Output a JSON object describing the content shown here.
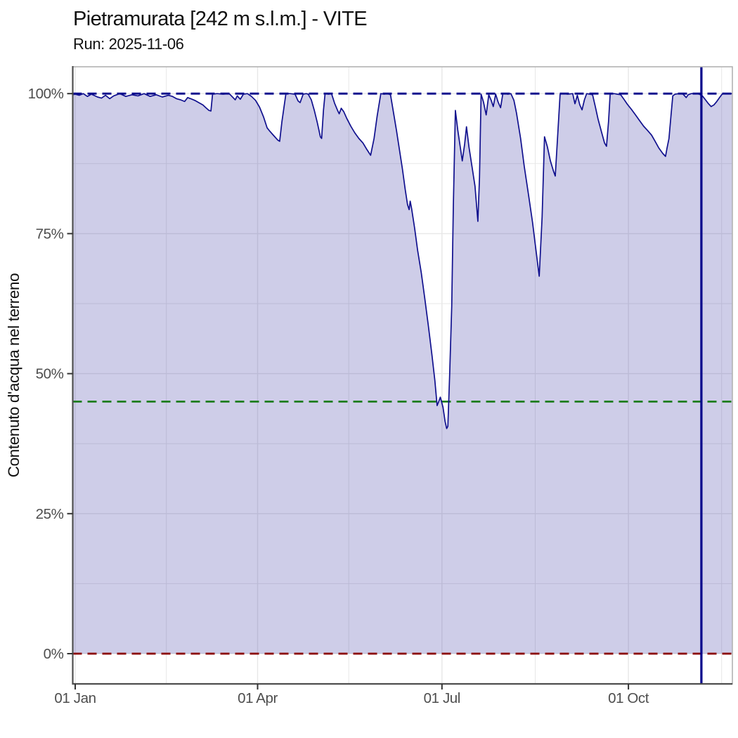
{
  "chart_data": {
    "type": "area",
    "title": "Pietramurata [242 m s.l.m.] - VITE",
    "subtitle": "Run: 2025-11-06",
    "run_date": "2025-11-06",
    "xlabel": "",
    "ylabel": "Contenuto d'acqua nel terreno",
    "x_axis": {
      "tick_labels": [
        "01 Jan",
        "01 Apr",
        "01 Jul",
        "01 Oct"
      ],
      "tick_days": [
        0,
        90,
        181,
        273
      ],
      "minor_days": [
        45,
        135,
        227,
        319
      ],
      "range_days": [
        -1.2,
        324.3
      ]
    },
    "y_axis": {
      "tick_labels": [
        "0%",
        "25%",
        "50%",
        "75%",
        "100%"
      ],
      "tick_values": [
        0,
        25,
        50,
        75,
        100
      ],
      "minor_values": [
        12.5,
        37.5,
        62.5,
        87.5
      ],
      "range_panel": [
        -5.4,
        104.8
      ]
    },
    "reference_lines": [
      {
        "name": "hline-100",
        "value": 100,
        "color": "#00008B"
      },
      {
        "name": "hline-threshold",
        "value": 45,
        "color": "#1e7d1e"
      },
      {
        "name": "hline-0",
        "value": 0,
        "color": "#8B0000"
      }
    ],
    "run_line": {
      "day": 309,
      "color": "#00008B"
    },
    "colors": {
      "series_line": "#10108e",
      "series_fill": "rgba(60,55,165,0.25)",
      "grid": "#e7e7e7",
      "panel_border": "#b3b3b3",
      "axis_line": "#4f4f4f",
      "tick": "#333333",
      "tick_text": "#4d4d4d",
      "title_text": "#111111"
    },
    "series": [
      {
        "name": "contenuto d'acqua (%)",
        "points": [
          [
            -1.2,
            99.8
          ],
          [
            0,
            99.9
          ],
          [
            2,
            99.7
          ],
          [
            4,
            100
          ],
          [
            6,
            99.5
          ],
          [
            8,
            99.9
          ],
          [
            11,
            99.4
          ],
          [
            13,
            99.2
          ],
          [
            15,
            99.7
          ],
          [
            17,
            99.1
          ],
          [
            19,
            99.6
          ],
          [
            22,
            100
          ],
          [
            25,
            99.5
          ],
          [
            28,
            99.8
          ],
          [
            31,
            99.6
          ],
          [
            34,
            100
          ],
          [
            37,
            99.5
          ],
          [
            40,
            99.8
          ],
          [
            43,
            99.4
          ],
          [
            46,
            99.7
          ],
          [
            48,
            99.5
          ],
          [
            50,
            99.1
          ],
          [
            52,
            98.9
          ],
          [
            54,
            98.6
          ],
          [
            55.5,
            99.3
          ],
          [
            57,
            99.1
          ],
          [
            59,
            98.8
          ],
          [
            61,
            98.4
          ],
          [
            63,
            98
          ],
          [
            64.5,
            97.5
          ],
          [
            66,
            97
          ],
          [
            67,
            96.9
          ],
          [
            67.8,
            99.9
          ],
          [
            70,
            100
          ],
          [
            73,
            99.9
          ],
          [
            76,
            100
          ],
          [
            79,
            98.9
          ],
          [
            80,
            99.6
          ],
          [
            81.5,
            99
          ],
          [
            83,
            99.9
          ],
          [
            85,
            100
          ],
          [
            87,
            99.5
          ],
          [
            89,
            98.8
          ],
          [
            91,
            97.6
          ],
          [
            93,
            95.8
          ],
          [
            94.7,
            93.9
          ],
          [
            96,
            93.3
          ],
          [
            98,
            92.5
          ],
          [
            100,
            91.7
          ],
          [
            100.9,
            91.5
          ],
          [
            102,
            95
          ],
          [
            104,
            100
          ],
          [
            106,
            100
          ],
          [
            108.5,
            99.9
          ],
          [
            110,
            98.7
          ],
          [
            111,
            98.4
          ],
          [
            112.5,
            99.9
          ],
          [
            114,
            100
          ],
          [
            115,
            99.9
          ],
          [
            116.5,
            98.9
          ],
          [
            118,
            97
          ],
          [
            119.5,
            94.8
          ],
          [
            121,
            92.3
          ],
          [
            121.6,
            92
          ],
          [
            122.5,
            97
          ],
          [
            123.3,
            100
          ],
          [
            125,
            99.9
          ],
          [
            126.5,
            100
          ],
          [
            128,
            98.3
          ],
          [
            129.5,
            97
          ],
          [
            130.3,
            96.4
          ],
          [
            131.3,
            97.4
          ],
          [
            132.5,
            96.8
          ],
          [
            134,
            95.6
          ],
          [
            136,
            94.2
          ],
          [
            138,
            93
          ],
          [
            140,
            92
          ],
          [
            142,
            91.2
          ],
          [
            144,
            90
          ],
          [
            145.8,
            89
          ],
          [
            147.5,
            92
          ],
          [
            149,
            96
          ],
          [
            150.8,
            100
          ],
          [
            152.5,
            99.9
          ],
          [
            154,
            100
          ],
          [
            155.6,
            99.8
          ],
          [
            157,
            96.8
          ],
          [
            158.5,
            93.5
          ],
          [
            160,
            90
          ],
          [
            161.5,
            86.5
          ],
          [
            162.8,
            83
          ],
          [
            164,
            80.2
          ],
          [
            164.8,
            79.3
          ],
          [
            165.3,
            80.8
          ],
          [
            166,
            79.5
          ],
          [
            167.5,
            76
          ],
          [
            169,
            72
          ],
          [
            170.8,
            68
          ],
          [
            172.5,
            63.5
          ],
          [
            174.3,
            58.5
          ],
          [
            176,
            53.5
          ],
          [
            177.5,
            48.8
          ],
          [
            178.6,
            44.3
          ],
          [
            179.4,
            45
          ],
          [
            180.2,
            45.8
          ],
          [
            181.5,
            44
          ],
          [
            182.5,
            41.5
          ],
          [
            183.3,
            40.2
          ],
          [
            183.9,
            40.6
          ],
          [
            184.8,
            50
          ],
          [
            185.8,
            62
          ],
          [
            186.6,
            80
          ],
          [
            187.6,
            97
          ],
          [
            188.8,
            93.5
          ],
          [
            190,
            90.5
          ],
          [
            191,
            88
          ],
          [
            192.2,
            91
          ],
          [
            193.1,
            94.1
          ],
          [
            194.3,
            90.5
          ],
          [
            195.8,
            87
          ],
          [
            197.3,
            83.5
          ],
          [
            198.7,
            77.2
          ],
          [
            199.5,
            85
          ],
          [
            200.3,
            99.9
          ],
          [
            201.5,
            98.5
          ],
          [
            202.8,
            96.2
          ],
          [
            204.1,
            99.8
          ],
          [
            205.3,
            98.8
          ],
          [
            206.3,
            97.7
          ],
          [
            207.5,
            99.9
          ],
          [
            208.7,
            98.5
          ],
          [
            209.9,
            97.5
          ],
          [
            211,
            99.9
          ],
          [
            212,
            100
          ],
          [
            213.5,
            99.9
          ],
          [
            215,
            100
          ],
          [
            216.5,
            98.8
          ],
          [
            217.8,
            96.5
          ],
          [
            219.8,
            92
          ],
          [
            221.6,
            87
          ],
          [
            223.7,
            82
          ],
          [
            225.7,
            77
          ],
          [
            227.4,
            72
          ],
          [
            229,
            67.4
          ],
          [
            230.4,
            78
          ],
          [
            231.6,
            92.3
          ],
          [
            233,
            90.5
          ],
          [
            234.5,
            88
          ],
          [
            236,
            86.2
          ],
          [
            236.9,
            85.3
          ],
          [
            238,
            92
          ],
          [
            239.3,
            99.9
          ],
          [
            241,
            100
          ],
          [
            243,
            99.9
          ],
          [
            245.5,
            100
          ],
          [
            246.6,
            98.2
          ],
          [
            247.8,
            99.7
          ],
          [
            249,
            98
          ],
          [
            250.1,
            97.1
          ],
          [
            251.3,
            98.9
          ],
          [
            252.4,
            100
          ],
          [
            254,
            99.9
          ],
          [
            255.3,
            99.8
          ],
          [
            256.6,
            97.8
          ],
          [
            258,
            95.5
          ],
          [
            259.7,
            93.2
          ],
          [
            261.2,
            91.2
          ],
          [
            262.2,
            90.6
          ],
          [
            263.2,
            95
          ],
          [
            264,
            99.9
          ],
          [
            266,
            100
          ],
          [
            267.5,
            99.9
          ],
          [
            269.2,
            99.8
          ],
          [
            270.8,
            99
          ],
          [
            272.5,
            98.1
          ],
          [
            274.5,
            97.2
          ],
          [
            276.5,
            96.2
          ],
          [
            278.5,
            95.2
          ],
          [
            280.5,
            94.2
          ],
          [
            282.5,
            93.4
          ],
          [
            284.4,
            92.6
          ],
          [
            286,
            91.6
          ],
          [
            288,
            90.3
          ],
          [
            290,
            89.3
          ],
          [
            291.3,
            88.8
          ],
          [
            292,
            90.2
          ],
          [
            293,
            92
          ],
          [
            294,
            96
          ],
          [
            294.9,
            99.6
          ],
          [
            296,
            99.9
          ],
          [
            298,
            100
          ],
          [
            300,
            99.9
          ],
          [
            301.5,
            99.3
          ],
          [
            302.5,
            99.8
          ],
          [
            304,
            100
          ],
          [
            306,
            100
          ],
          [
            308,
            99.9
          ],
          [
            309.5,
            99.6
          ],
          [
            311,
            98.9
          ],
          [
            312.5,
            98.2
          ],
          [
            313.8,
            97.7
          ],
          [
            315.2,
            98
          ],
          [
            316.6,
            98.6
          ],
          [
            318,
            99.3
          ],
          [
            319.2,
            99.9
          ],
          [
            321,
            100
          ],
          [
            323,
            100
          ],
          [
            324.3,
            100
          ]
        ]
      }
    ]
  }
}
